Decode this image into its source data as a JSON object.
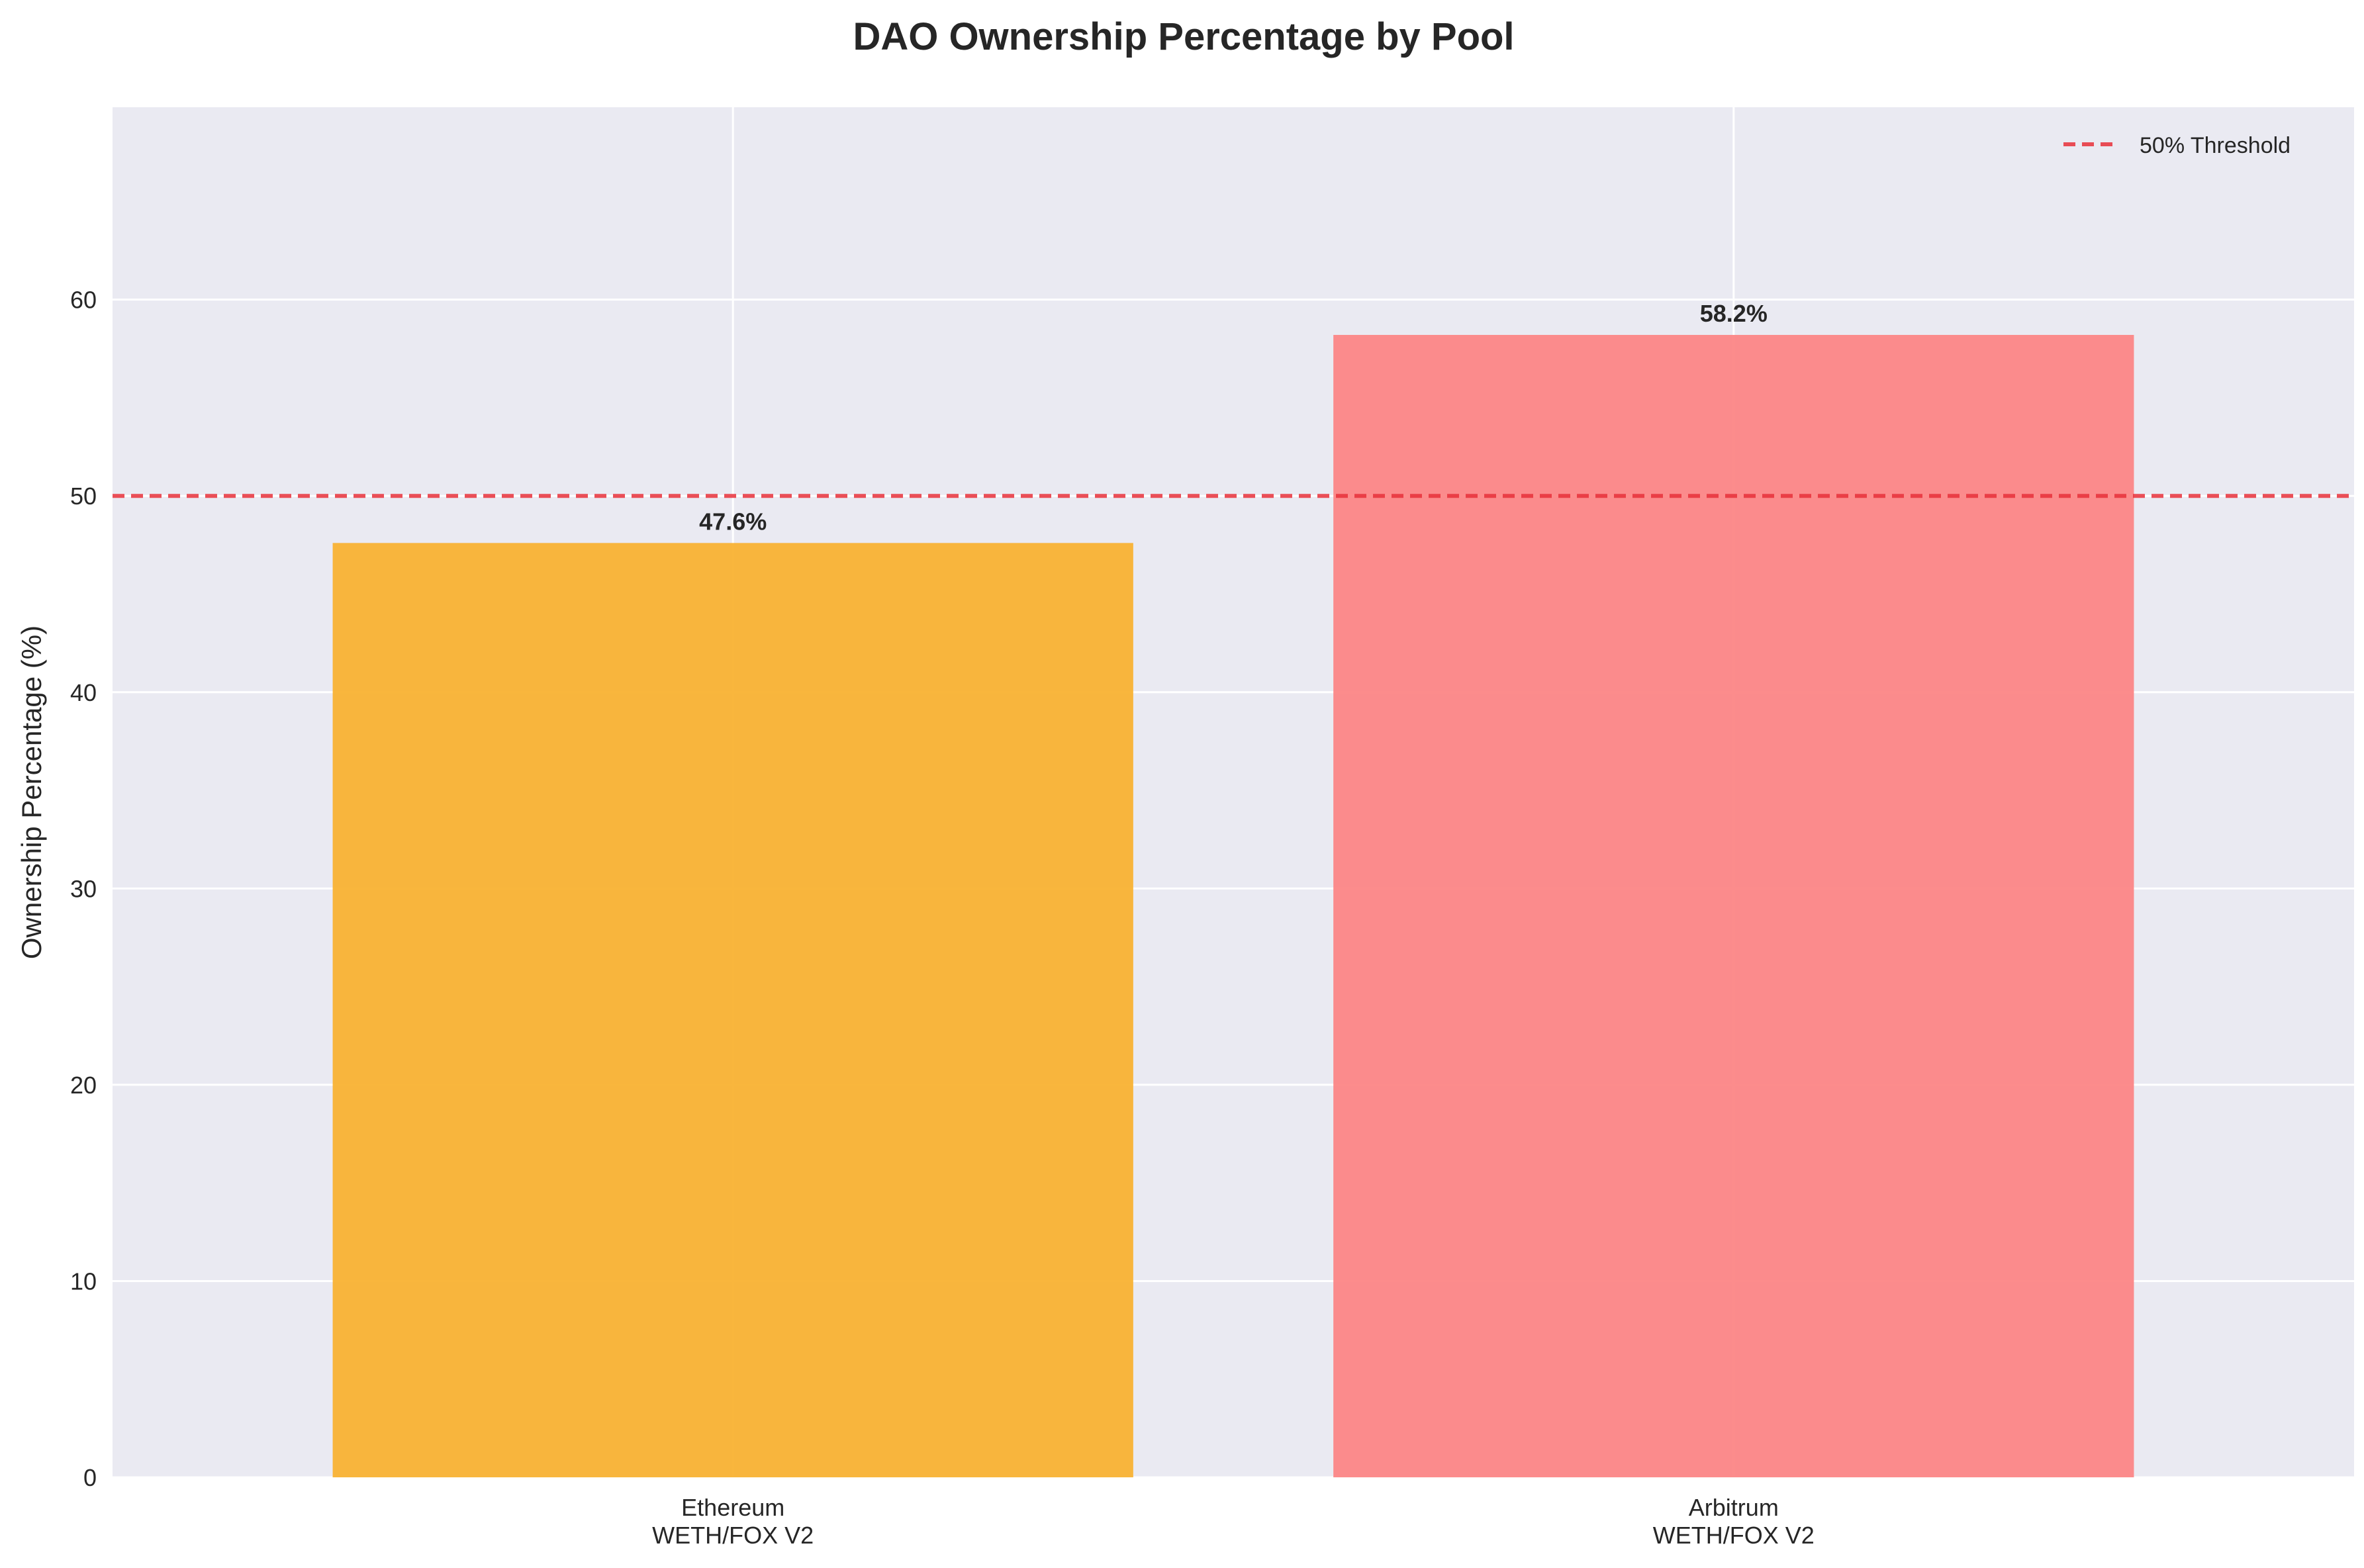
{
  "chart_data": {
    "type": "bar",
    "title": "DAO Ownership Percentage by Pool",
    "ylabel": "Ownership Percentage (%)",
    "xlabel": "",
    "categories": [
      [
        "Ethereum",
        "WETH/FOX V2"
      ],
      [
        "Arbitrum",
        "WETH/FOX V2"
      ]
    ],
    "values": [
      47.6,
      58.2
    ],
    "value_labels": [
      "47.6%",
      "58.2%"
    ],
    "bar_colors": [
      "#F9B233",
      "#FC8686"
    ],
    "ylim": [
      0,
      69.8
    ],
    "yticks": [
      0,
      10,
      20,
      30,
      40,
      50,
      60
    ],
    "grid": true,
    "background": "#EAEAF2",
    "threshold": {
      "value": 50,
      "label": "50% Threshold",
      "color": "#E8313A",
      "style": "dashed"
    },
    "legend": {
      "position": "top-right",
      "entries": [
        "50% Threshold"
      ]
    }
  }
}
